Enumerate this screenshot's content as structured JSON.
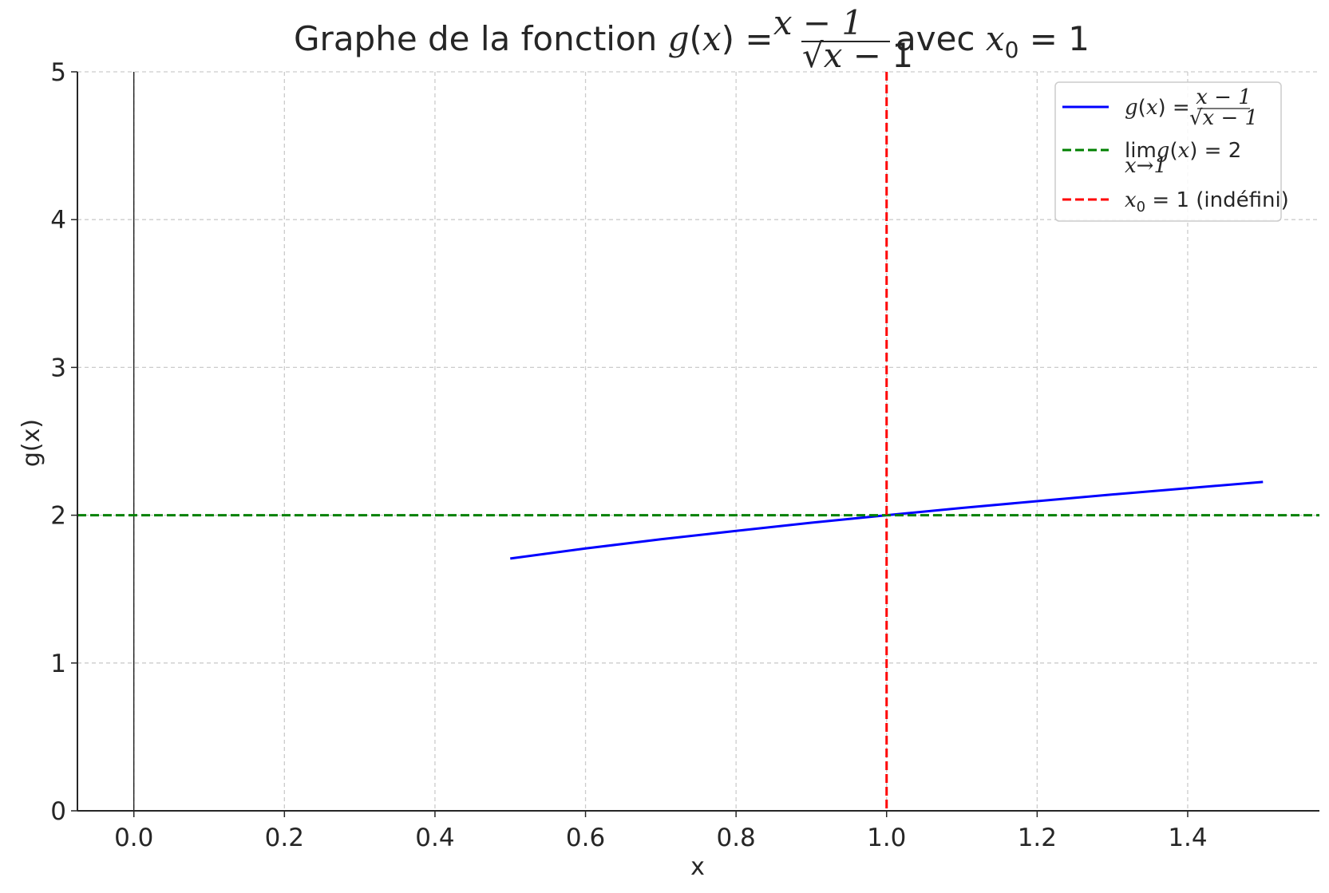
{
  "chart_data": {
    "type": "line",
    "title": {
      "prefix": "Graphe de la fonction ",
      "g": "g",
      "x_open": "(",
      "x": "x",
      "x_close": ")",
      "eq": " = ",
      "numerator": "x − 1",
      "sqrt": "√",
      "denominator_x": "x",
      "denominator_rest": " − 1",
      "suffix": " avec ",
      "x0_var": "x",
      "x0_sub": "0",
      "x0_eq": " = 1"
    },
    "xlabel": "x",
    "ylabel": "g(x)",
    "xlim": [
      -0.075,
      1.575
    ],
    "ylim": [
      0,
      5
    ],
    "x_ticks": [
      0.0,
      0.2,
      0.4,
      0.6,
      0.8,
      1.0,
      1.2,
      1.4
    ],
    "x_tick_labels": [
      "0.0",
      "0.2",
      "0.4",
      "0.6",
      "0.8",
      "1.0",
      "1.2",
      "1.4"
    ],
    "y_ticks": [
      0,
      1,
      2,
      3,
      4,
      5
    ],
    "y_tick_labels": [
      "0",
      "1",
      "2",
      "3",
      "4",
      "5"
    ],
    "grid": true,
    "legend_position": "top-right",
    "series": [
      {
        "name": "g(x) = (x − 1)/(√x − 1)",
        "legend": {
          "g": "g",
          "po": "(",
          "x": "x",
          "pc": ")",
          "eq": " = ",
          "num": "x − 1",
          "den": "√x − 1"
        },
        "style": "solid",
        "color": "#0000ff",
        "x": [
          0.5,
          0.6,
          0.7,
          0.8,
          0.9,
          1.0,
          1.1,
          1.2,
          1.3,
          1.4,
          1.5
        ],
        "y": [
          1.707,
          1.775,
          1.837,
          1.894,
          1.949,
          2.0,
          2.049,
          2.095,
          2.14,
          2.183,
          2.225
        ]
      },
      {
        "name": "lim g(x) = 2",
        "legend": {
          "lim": "lim",
          "sub": "x→1",
          "g": "g",
          "po": "(",
          "x": "x",
          "pc": ")",
          "eq": " = 2"
        },
        "style": "dashed",
        "orientation": "horizontal",
        "color": "#008000",
        "y": 2
      },
      {
        "name": "x0 = 1 (indéfini)",
        "legend": {
          "x": "x",
          "sub": "0",
          "eq": " = 1",
          "rest": " (indéfini)"
        },
        "style": "dashed",
        "orientation": "vertical",
        "color": "#ff0000",
        "x": 1
      }
    ],
    "zero_line": {
      "x": 0,
      "color": "#000000"
    }
  }
}
